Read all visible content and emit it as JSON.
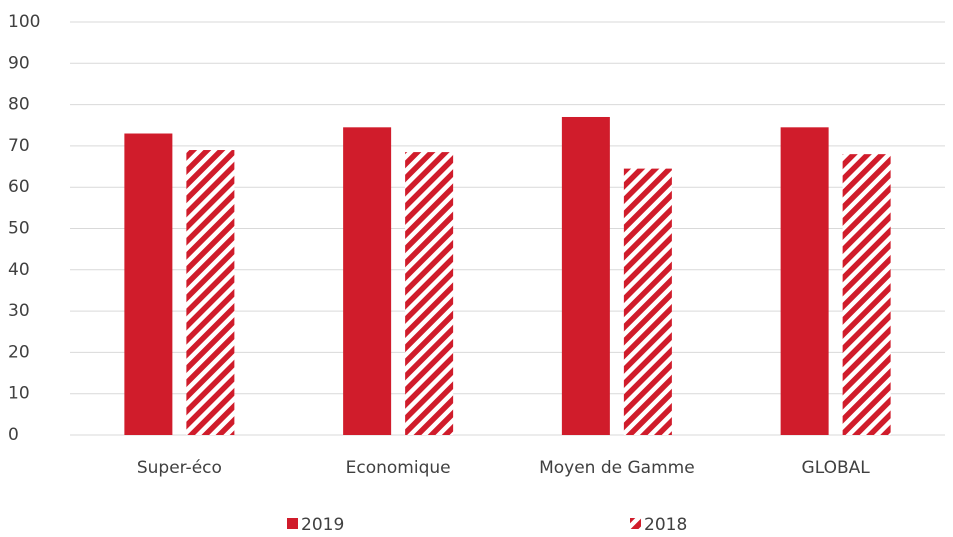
{
  "chart_data": {
    "type": "bar",
    "categories": [
      "Super-éco",
      "Economique",
      "Moyen de Gamme",
      "GLOBAL"
    ],
    "series": [
      {
        "name": "2019",
        "color": "#d01c2b",
        "pattern": "solid",
        "values": [
          73,
          74.5,
          77,
          74.5
        ]
      },
      {
        "name": "2018",
        "color": "#d01c2b",
        "pattern": "hatch",
        "values": [
          69,
          68.5,
          64.5,
          68
        ]
      }
    ],
    "ylim": [
      0,
      100
    ],
    "yticks": [
      0,
      10,
      20,
      30,
      40,
      50,
      60,
      70,
      80,
      90,
      100
    ],
    "grid": true,
    "legend": "bottom"
  }
}
